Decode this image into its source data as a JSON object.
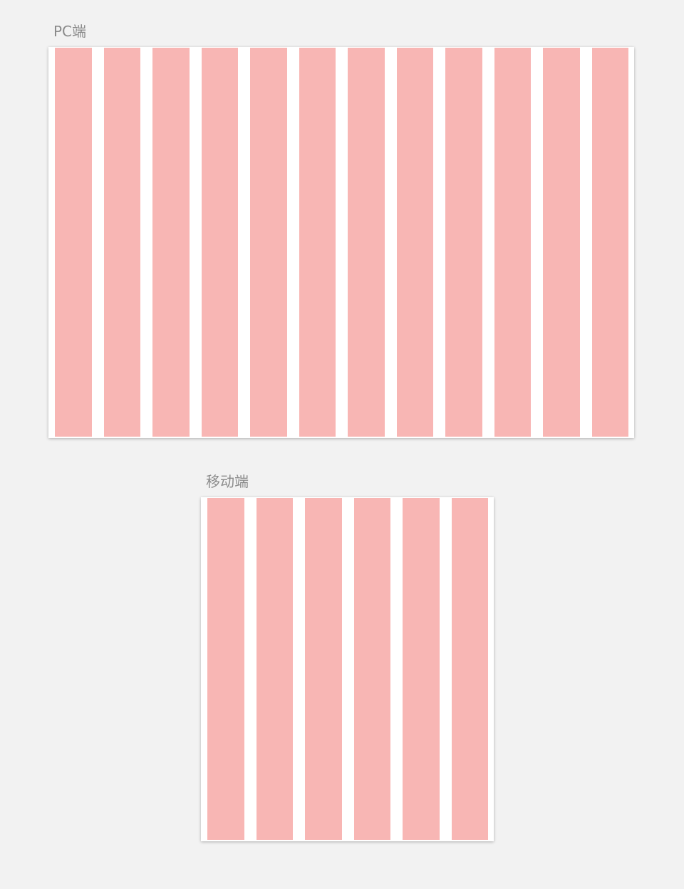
{
  "pc": {
    "label": "PC端",
    "column_count": 12
  },
  "mobile": {
    "label": "移动端",
    "column_count": 6
  },
  "colors": {
    "background": "#f2f2f2",
    "frame": "#ffffff",
    "column": "#f8b6b4",
    "label": "#8a8a8a"
  }
}
